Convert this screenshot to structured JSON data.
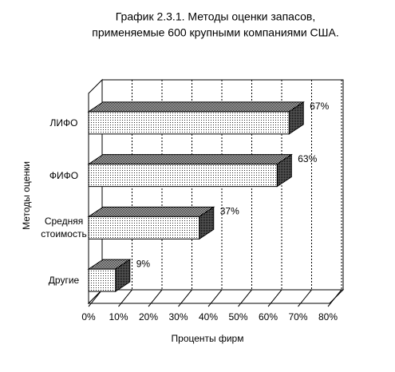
{
  "chart_data": {
    "type": "bar3d-horizontal",
    "title": [
      "График 2.3.1.  Методы оценки запасов,",
      "применяемые 600 крупными компаниями США."
    ],
    "xlabel": "Проценты фирм",
    "ylabel": "Методы оценки",
    "categories": [
      "ЛИФО",
      "ФИФО",
      "Средняя стоимость",
      "Другие"
    ],
    "values": [
      67,
      63,
      37,
      9
    ],
    "value_labels": [
      "67%",
      "63%",
      "37%",
      "9%"
    ],
    "xlim": [
      0,
      80
    ],
    "xticks": [
      {
        "value": 0,
        "label": "0%"
      },
      {
        "value": 10,
        "label": "10%"
      },
      {
        "value": 20,
        "label": "20%"
      },
      {
        "value": 30,
        "label": "30%"
      },
      {
        "value": 40,
        "label": "40%"
      },
      {
        "value": 50,
        "label": "50%"
      },
      {
        "value": 60,
        "label": "60%"
      },
      {
        "value": 70,
        "label": "70%"
      },
      {
        "value": 80,
        "label": "80%"
      }
    ],
    "grid": true
  }
}
